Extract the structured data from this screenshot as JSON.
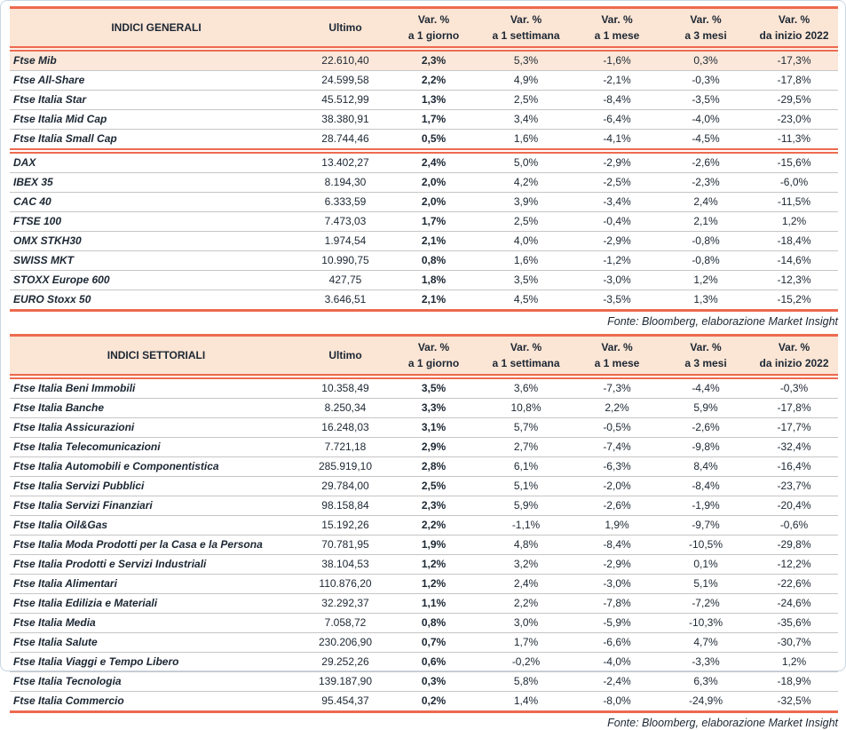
{
  "page": {
    "accent_color": "#ed6a4f",
    "header_bg": "#fbe5d5",
    "highlight_bg": "#fbe8da",
    "text_color": "#1c2733",
    "separator_color": "#c6c6c6",
    "page_border_color": "#c9d6e2"
  },
  "tables": [
    {
      "title": "INDICI GENERALI",
      "ultimo_label": "Ultimo",
      "var_label": "Var. %",
      "periods": [
        "a 1 giorno",
        "a 1 settimana",
        "a 1 mese",
        "a 3 mesi",
        "da inizio 2022"
      ],
      "fonte": "Fonte: Bloomberg, elaborazione Market Insight",
      "groups": [
        [
          {
            "name": "Ftse Mib",
            "ultimo": "22.610,40",
            "d1": "2,3%",
            "w1": "5,3%",
            "m1": "-1,6%",
            "m3": "0,3%",
            "ytd": "-17,3%",
            "highlight": true
          },
          {
            "name": "Ftse All-Share",
            "ultimo": "24.599,58",
            "d1": "2,2%",
            "w1": "4,9%",
            "m1": "-2,1%",
            "m3": "-0,3%",
            "ytd": "-17,8%"
          },
          {
            "name": "Ftse Italia Star",
            "ultimo": "45.512,99",
            "d1": "1,3%",
            "w1": "2,5%",
            "m1": "-8,4%",
            "m3": "-3,5%",
            "ytd": "-29,5%"
          },
          {
            "name": "Ftse Italia Mid Cap",
            "ultimo": "38.380,91",
            "d1": "1,7%",
            "w1": "3,4%",
            "m1": "-6,4%",
            "m3": "-4,0%",
            "ytd": "-23,0%"
          },
          {
            "name": "Ftse Italia Small Cap",
            "ultimo": "28.744,46",
            "d1": "0,5%",
            "w1": "1,6%",
            "m1": "-4,1%",
            "m3": "-4,5%",
            "ytd": "-11,3%"
          }
        ],
        [
          {
            "name": "DAX",
            "ultimo": "13.402,27",
            "d1": "2,4%",
            "w1": "5,0%",
            "m1": "-2,9%",
            "m3": "-2,6%",
            "ytd": "-15,6%"
          },
          {
            "name": "IBEX 35",
            "ultimo": "8.194,30",
            "d1": "2,0%",
            "w1": "4,2%",
            "m1": "-2,5%",
            "m3": "-2,3%",
            "ytd": "-6,0%"
          },
          {
            "name": "CAC 40",
            "ultimo": "6.333,59",
            "d1": "2,0%",
            "w1": "3,9%",
            "m1": "-3,4%",
            "m3": "2,4%",
            "ytd": "-11,5%"
          },
          {
            "name": "FTSE 100",
            "ultimo": "7.473,03",
            "d1": "1,7%",
            "w1": "2,5%",
            "m1": "-0,4%",
            "m3": "2,1%",
            "ytd": "1,2%"
          },
          {
            "name": "OMX STKH30",
            "ultimo": "1.974,54",
            "d1": "2,1%",
            "w1": "4,0%",
            "m1": "-2,9%",
            "m3": "-0,8%",
            "ytd": "-18,4%"
          },
          {
            "name": "SWISS MKT",
            "ultimo": "10.990,75",
            "d1": "0,8%",
            "w1": "1,6%",
            "m1": "-1,2%",
            "m3": "-0,8%",
            "ytd": "-14,6%"
          },
          {
            "name": "STOXX Europe 600",
            "ultimo": "427,75",
            "d1": "1,8%",
            "w1": "3,5%",
            "m1": "-3,0%",
            "m3": "1,2%",
            "ytd": "-12,3%"
          },
          {
            "name": "EURO Stoxx 50",
            "ultimo": "3.646,51",
            "d1": "2,1%",
            "w1": "4,5%",
            "m1": "-3,5%",
            "m3": "1,3%",
            "ytd": "-15,2%"
          }
        ]
      ]
    },
    {
      "title": "INDICI SETTORIALI",
      "ultimo_label": "Ultimo",
      "var_label": "Var. %",
      "periods": [
        "a 1 giorno",
        "a 1 settimana",
        "a 1 mese",
        "a 3 mesi",
        "da inizio 2022"
      ],
      "fonte": "Fonte: Bloomberg, elaborazione Market Insight",
      "groups": [
        [
          {
            "name": "Ftse Italia Beni Immobili",
            "ultimo": "10.358,49",
            "d1": "3,5%",
            "w1": "3,6%",
            "m1": "-7,3%",
            "m3": "-4,4%",
            "ytd": "-0,3%"
          },
          {
            "name": "Ftse Italia Banche",
            "ultimo": "8.250,34",
            "d1": "3,3%",
            "w1": "10,8%",
            "m1": "2,2%",
            "m3": "5,9%",
            "ytd": "-17,8%"
          },
          {
            "name": "Ftse Italia Assicurazioni",
            "ultimo": "16.248,03",
            "d1": "3,1%",
            "w1": "5,7%",
            "m1": "-0,5%",
            "m3": "-2,6%",
            "ytd": "-17,7%"
          },
          {
            "name": "Ftse Italia Telecomunicazioni",
            "ultimo": "7.721,18",
            "d1": "2,9%",
            "w1": "2,7%",
            "m1": "-7,4%",
            "m3": "-9,8%",
            "ytd": "-32,4%"
          },
          {
            "name": "Ftse Italia Automobili e Componentistica",
            "ultimo": "285.919,10",
            "d1": "2,8%",
            "w1": "6,1%",
            "m1": "-6,3%",
            "m3": "8,4%",
            "ytd": "-16,4%"
          },
          {
            "name": "Ftse Italia Servizi Pubblici",
            "ultimo": "29.784,00",
            "d1": "2,5%",
            "w1": "5,1%",
            "m1": "-2,0%",
            "m3": "-8,4%",
            "ytd": "-23,7%"
          },
          {
            "name": "Ftse Italia Servizi Finanziari",
            "ultimo": "98.158,84",
            "d1": "2,3%",
            "w1": "5,9%",
            "m1": "-2,6%",
            "m3": "-1,9%",
            "ytd": "-20,4%"
          },
          {
            "name": "Ftse Italia Oil&Gas",
            "ultimo": "15.192,26",
            "d1": "2,2%",
            "w1": "-1,1%",
            "m1": "1,9%",
            "m3": "-9,7%",
            "ytd": "-0,6%"
          },
          {
            "name": "Ftse Italia Moda Prodotti per la Casa e la Persona",
            "ultimo": "70.781,95",
            "d1": "1,9%",
            "w1": "4,8%",
            "m1": "-8,4%",
            "m3": "-10,5%",
            "ytd": "-29,8%"
          },
          {
            "name": "Ftse Italia Prodotti e Servizi Industriali",
            "ultimo": "38.104,53",
            "d1": "1,2%",
            "w1": "3,2%",
            "m1": "-2,9%",
            "m3": "0,1%",
            "ytd": "-12,2%"
          },
          {
            "name": "Ftse Italia Alimentari",
            "ultimo": "110.876,20",
            "d1": "1,2%",
            "w1": "2,4%",
            "m1": "-3,0%",
            "m3": "5,1%",
            "ytd": "-22,6%"
          },
          {
            "name": "Ftse Italia Edilizia e Materiali",
            "ultimo": "32.292,37",
            "d1": "1,1%",
            "w1": "2,2%",
            "m1": "-7,8%",
            "m3": "-7,2%",
            "ytd": "-24,6%"
          },
          {
            "name": "Ftse Italia Media",
            "ultimo": "7.058,72",
            "d1": "0,8%",
            "w1": "3,0%",
            "m1": "-5,9%",
            "m3": "-10,3%",
            "ytd": "-35,6%"
          },
          {
            "name": "Ftse Italia Salute",
            "ultimo": "230.206,90",
            "d1": "0,7%",
            "w1": "1,7%",
            "m1": "-6,6%",
            "m3": "4,7%",
            "ytd": "-30,7%"
          },
          {
            "name": "Ftse Italia Viaggi e Tempo Libero",
            "ultimo": "29.252,26",
            "d1": "0,6%",
            "w1": "-0,2%",
            "m1": "-4,0%",
            "m3": "-3,3%",
            "ytd": "1,2%"
          },
          {
            "name": "Ftse Italia Tecnologia",
            "ultimo": "139.187,90",
            "d1": "0,3%",
            "w1": "5,8%",
            "m1": "-2,4%",
            "m3": "6,3%",
            "ytd": "-18,9%"
          },
          {
            "name": "Ftse Italia Commercio",
            "ultimo": "95.454,37",
            "d1": "0,2%",
            "w1": "1,4%",
            "m1": "-8,0%",
            "m3": "-24,9%",
            "ytd": "-32,5%"
          }
        ]
      ]
    }
  ]
}
